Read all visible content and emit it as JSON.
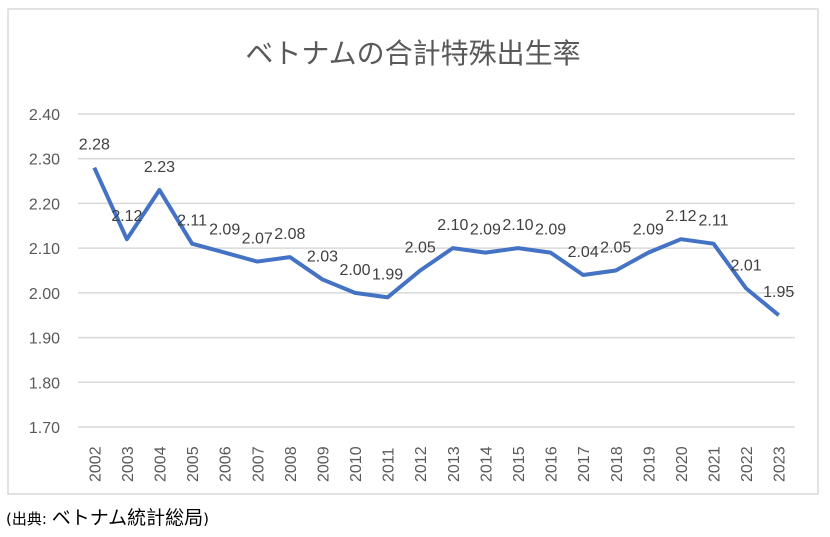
{
  "chart_data": {
    "type": "line",
    "title": "ベトナムの合計特殊出生率",
    "xlabel": "",
    "ylabel": "",
    "categories": [
      "2002",
      "2003",
      "2004",
      "2005",
      "2006",
      "2007",
      "2008",
      "2009",
      "2010",
      "2011",
      "2012",
      "2013",
      "2014",
      "2015",
      "2016",
      "2017",
      "2018",
      "2019",
      "2020",
      "2021",
      "2022",
      "2023"
    ],
    "values": [
      2.28,
      2.12,
      2.23,
      2.11,
      2.09,
      2.07,
      2.08,
      2.03,
      2.0,
      1.99,
      2.05,
      2.1,
      2.09,
      2.1,
      2.09,
      2.04,
      2.05,
      2.09,
      2.12,
      2.11,
      2.01,
      1.95
    ],
    "data_labels": [
      "2.28",
      "2.12",
      "2.23",
      "2.11",
      "2.09",
      "2.07",
      "2.08",
      "2.03",
      "2.00",
      "1.99",
      "2.05",
      "2.10",
      "2.09",
      "2.10",
      "2.09",
      "2.04",
      "2.05",
      "2.09",
      "2.12",
      "2.11",
      "2.01",
      "1.95"
    ],
    "ylim": [
      1.7,
      2.4
    ],
    "yticks": [
      "1.70",
      "1.80",
      "1.90",
      "2.00",
      "2.10",
      "2.20",
      "2.30",
      "2.40"
    ],
    "grid": true,
    "legend": "none",
    "line_color": "#4472C4"
  },
  "source": {
    "prefix": "(出典: ",
    "name": "ベトナム統計総局",
    "suffix": ")"
  }
}
